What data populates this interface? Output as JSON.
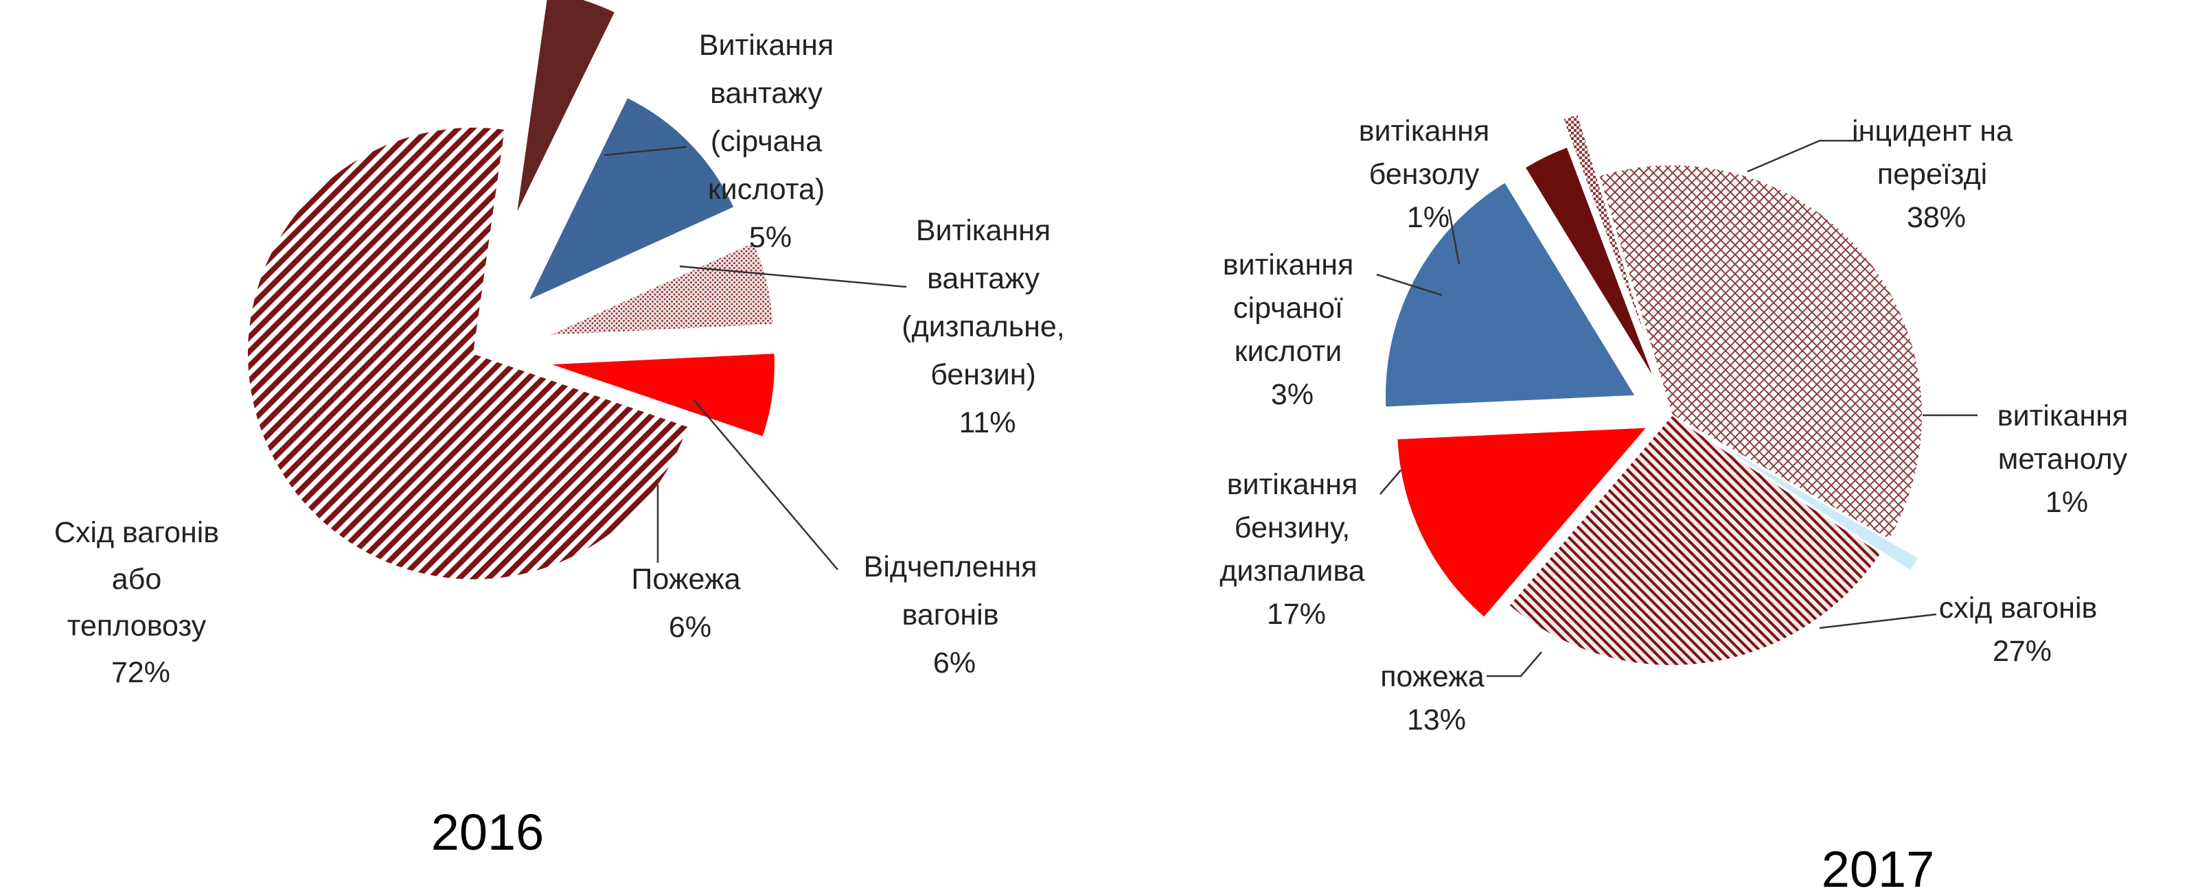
{
  "chart_data": [
    {
      "type": "pie",
      "title": "2016",
      "legend": "none",
      "slices": [
        {
          "label": [
            "Витікання",
            "вантажу",
            "(сірчана",
            "кислота)"
          ],
          "percent_label": "5%",
          "value": 5,
          "color": "#632523",
          "pattern": "solid"
        },
        {
          "label": [
            "Витікання",
            "вантажу",
            "(дизпальне,",
            "бензин)"
          ],
          "percent_label": "11%",
          "value": 11,
          "color": "#3F6698",
          "pattern": "solid"
        },
        {
          "label": [
            "Відчеплення",
            "вагонів"
          ],
          "percent_label": "6%",
          "value": 6,
          "color": "#8B3A3A",
          "pattern": "dots"
        },
        {
          "label": [
            "Пожежа"
          ],
          "percent_label": "6%",
          "value": 6,
          "color": "#FF0000",
          "pattern": "solid"
        },
        {
          "label": [
            "Схід вагонів",
            "або",
            "тепловозу"
          ],
          "percent_label": "72%",
          "value": 72,
          "color": "#7B1515",
          "pattern": "diagonal-stripes"
        }
      ]
    },
    {
      "type": "pie",
      "title": "2017",
      "legend": "none",
      "slices": [
        {
          "label": [
            "інцидент на",
            "переїзді"
          ],
          "percent_label": "38%",
          "value": 38,
          "color": "#8B3A3A",
          "pattern": "crosshatch"
        },
        {
          "label": [
            "витікання",
            "метанолу"
          ],
          "percent_label": "1%",
          "value": 1,
          "color": "#CDEBF7",
          "pattern": "solid"
        },
        {
          "label": [
            "схід вагонів"
          ],
          "percent_label": "27%",
          "value": 27,
          "color": "#7B1515",
          "pattern": "diagonal-hatch"
        },
        {
          "label": [
            "пожежа"
          ],
          "percent_label": "13%",
          "value": 13,
          "color": "#FF0000",
          "pattern": "solid"
        },
        {
          "label": [
            "витікання",
            "бензину,",
            "дизпалива"
          ],
          "percent_label": "17%",
          "value": 17,
          "color": "#4472A8",
          "pattern": "solid"
        },
        {
          "label": [
            "витікання",
            "сірчаної",
            "кислоти"
          ],
          "percent_label": "3%",
          "value": 3,
          "color": "#6B0E0E",
          "pattern": "solid"
        },
        {
          "label": [
            "витікання",
            "бензолу"
          ],
          "percent_label": "1%",
          "value": 1,
          "color": "#8B3A3A",
          "pattern": "checker"
        }
      ]
    }
  ]
}
